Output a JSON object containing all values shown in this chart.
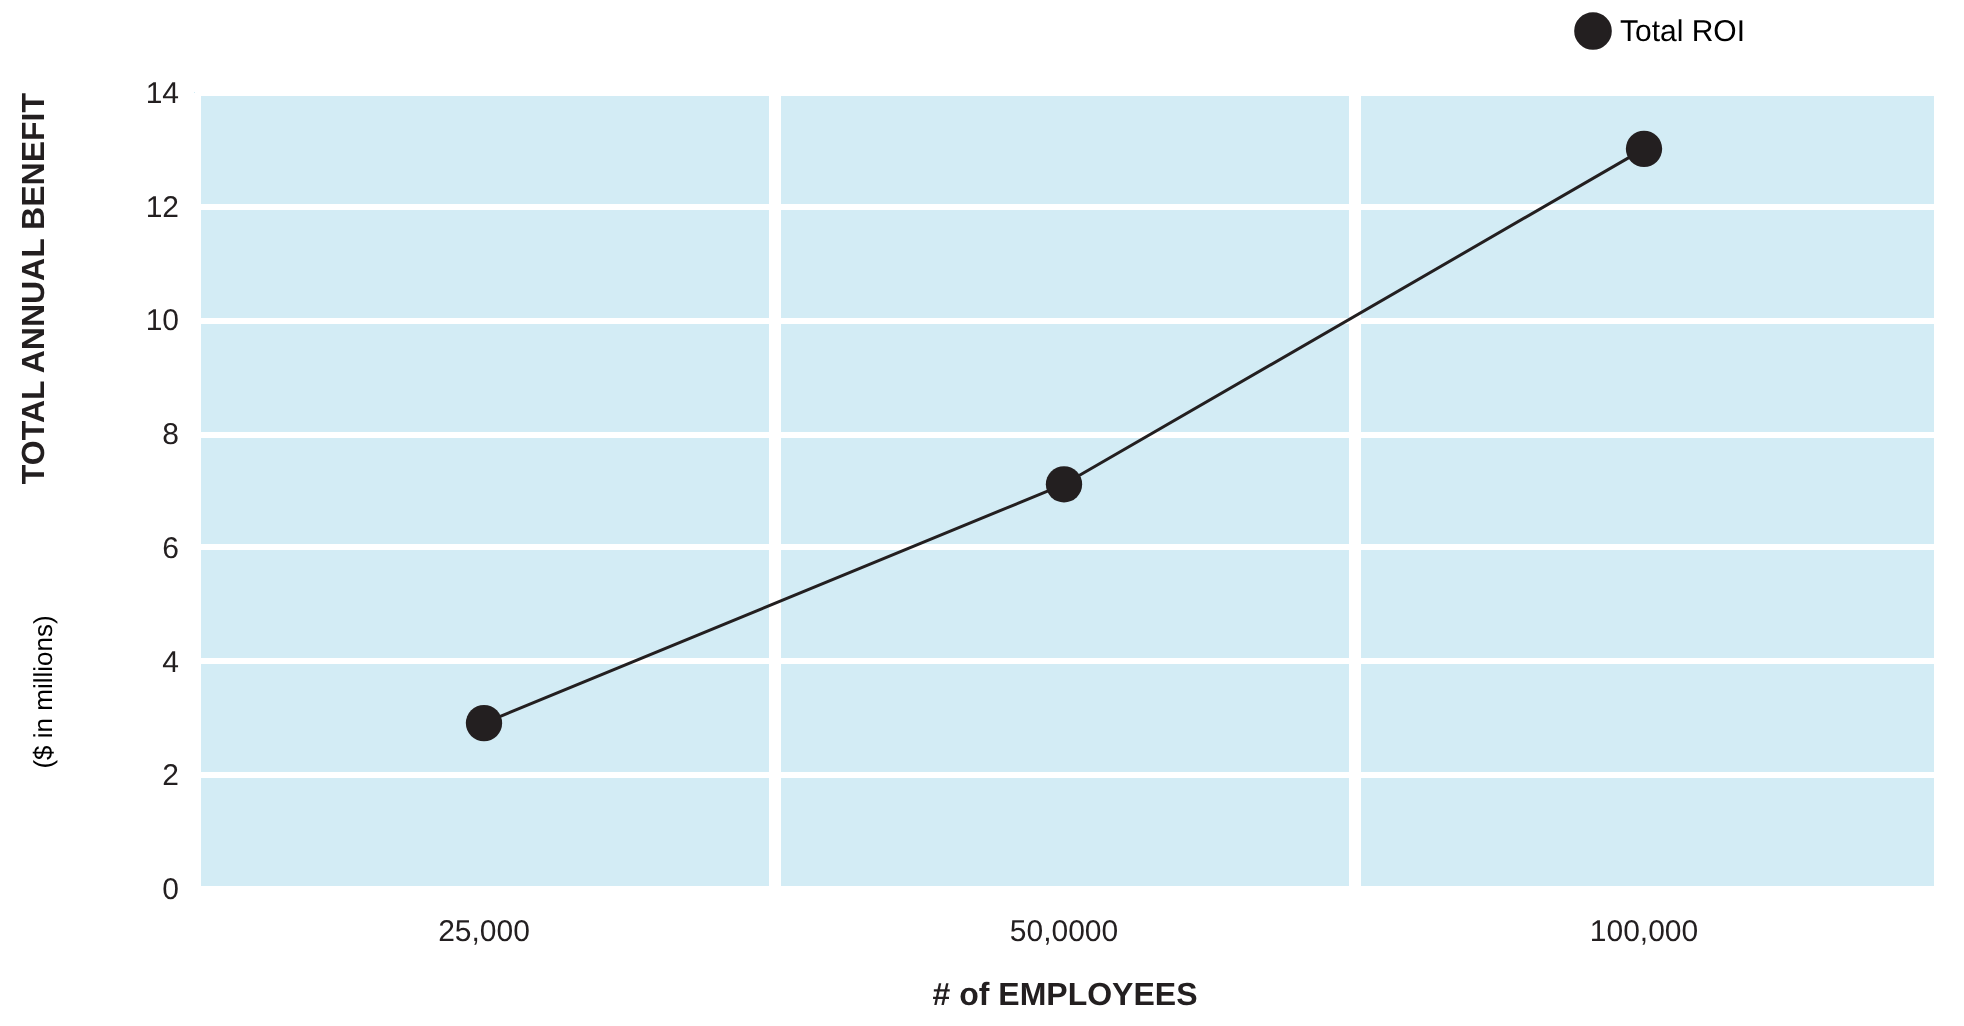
{
  "chart_data": {
    "type": "line",
    "categories": [
      "25,000",
      "50,0000",
      "100,000"
    ],
    "series": [
      {
        "name": "Total ROI",
        "color": "#231f20",
        "values": [
          2.9,
          7.1,
          13
        ]
      }
    ],
    "xlabel": "# of EMPLOYEES",
    "ylabel": "TOTAL ANNUAL BENEFIT",
    "annotations": [
      "($ in millions)"
    ],
    "ylim": [
      0,
      14
    ],
    "yticks": [
      0,
      2,
      4,
      6,
      8,
      10,
      12,
      14
    ],
    "grid": true,
    "legend": "top right",
    "marker": "circle",
    "line_style": "solid"
  }
}
